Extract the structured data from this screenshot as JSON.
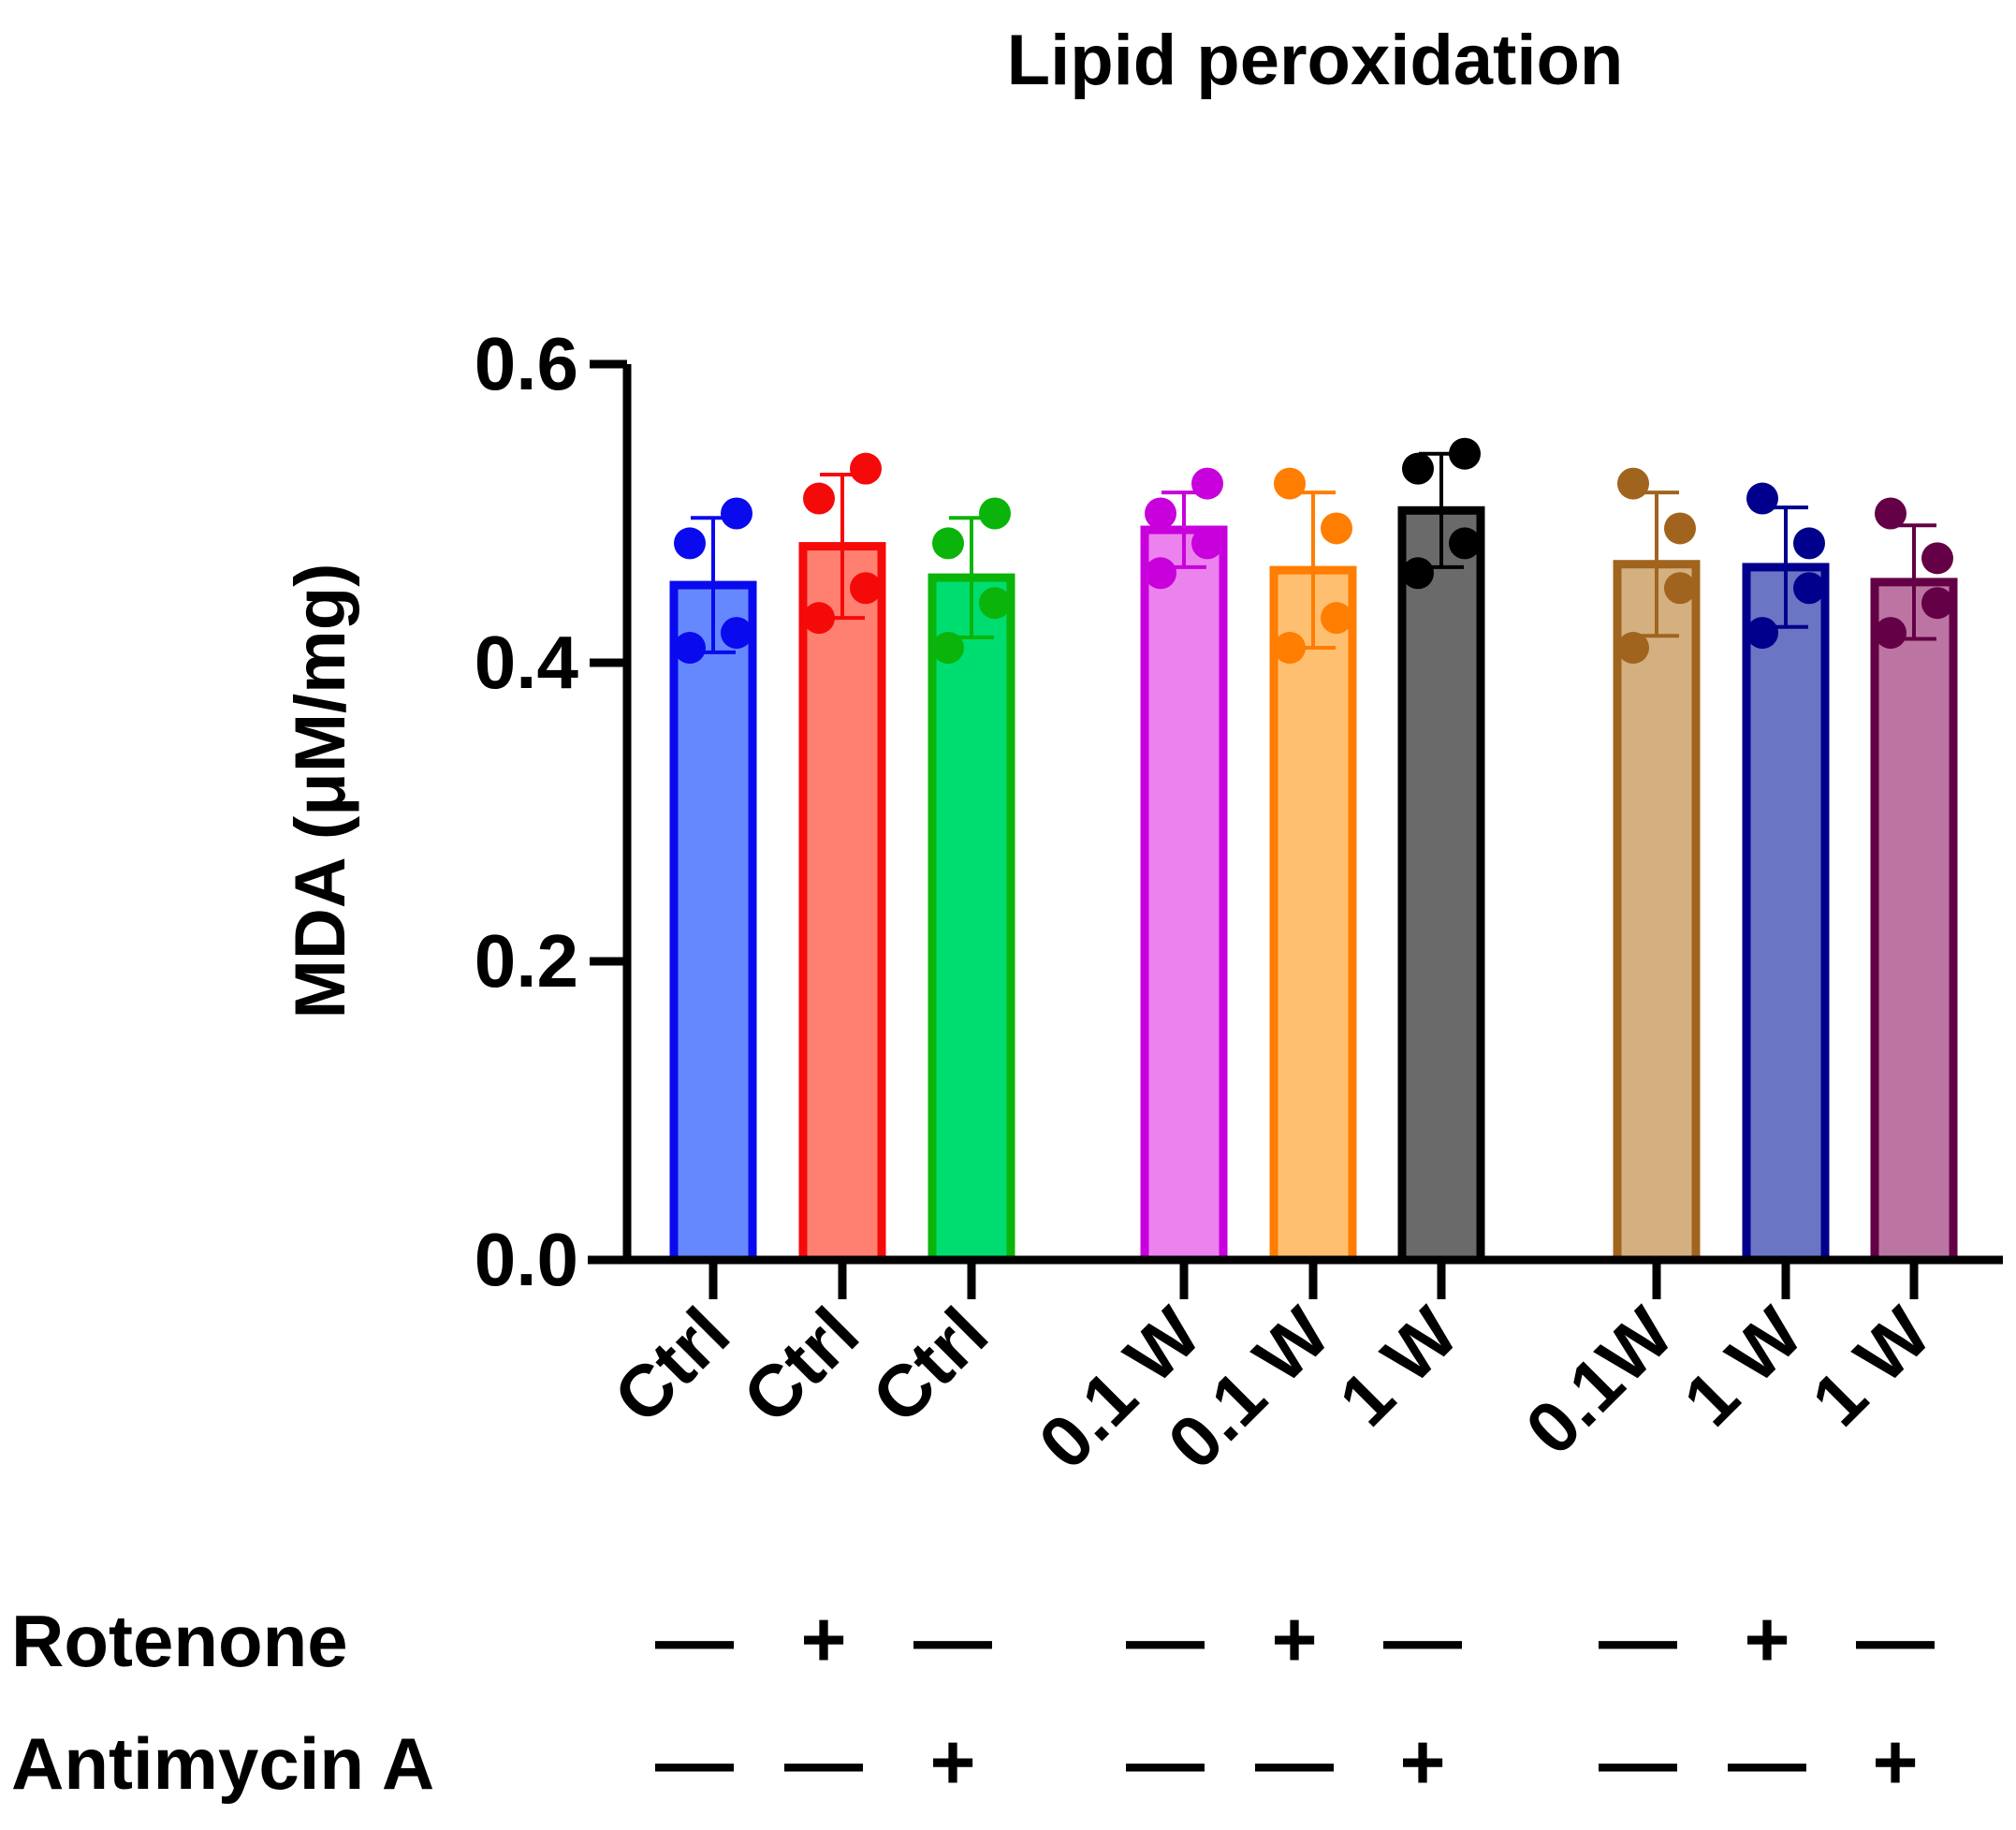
{
  "chart_data": {
    "type": "bar",
    "title": "Lipid peroxidation",
    "ylabel": "MDA (μM/mg)",
    "xlabel": "",
    "ylim": [
      0,
      0.6
    ],
    "yticks": [
      "0.0",
      "0.2",
      "0.4",
      "0.6"
    ],
    "grid": false,
    "categories": [
      "Ctrl",
      "Ctrl",
      "Ctrl",
      "0.1 W",
      "0.1 W",
      "1 W",
      "0.1W",
      "1 W",
      "1 W"
    ],
    "values": [
      0.452,
      0.478,
      0.457,
      0.489,
      0.462,
      0.502,
      0.466,
      0.464,
      0.454
    ],
    "sd": [
      0.045,
      0.048,
      0.04,
      0.025,
      0.052,
      0.038,
      0.048,
      0.04,
      0.038
    ],
    "points": [
      [
        0.48,
        0.5,
        0.42,
        0.41
      ],
      [
        0.51,
        0.53,
        0.45,
        0.43
      ],
      [
        0.48,
        0.5,
        0.44,
        0.41
      ],
      [
        0.5,
        0.52,
        0.48,
        0.46
      ],
      [
        0.52,
        0.49,
        0.43,
        0.41
      ],
      [
        0.53,
        0.54,
        0.48,
        0.46
      ],
      [
        0.52,
        0.49,
        0.45,
        0.41
      ],
      [
        0.51,
        0.48,
        0.45,
        0.42
      ],
      [
        0.5,
        0.47,
        0.44,
        0.42
      ]
    ],
    "fill_colors": [
      "#6688FF",
      "#FF8070",
      "#00DD70",
      "#EC82EE",
      "#FFBF70",
      "#6A6A6A",
      "#D4AF80",
      "#6A75C4",
      "#BC75A2"
    ],
    "edge_colors": [
      "#0A0AEE",
      "#F50A0A",
      "#0AB40A",
      "#C800DC",
      "#FF7D00",
      "#000000",
      "#A0641E",
      "#00008C",
      "#640046"
    ],
    "conditions": [
      {
        "label": "Rotenone",
        "marks": [
          "—",
          "+",
          "—",
          "—",
          "+",
          "—",
          "—",
          "+",
          "—"
        ]
      },
      {
        "label": "Antimycin A",
        "marks": [
          "—",
          "—",
          "+",
          "—",
          "—",
          "+",
          "—",
          "—",
          "+"
        ]
      }
    ]
  }
}
